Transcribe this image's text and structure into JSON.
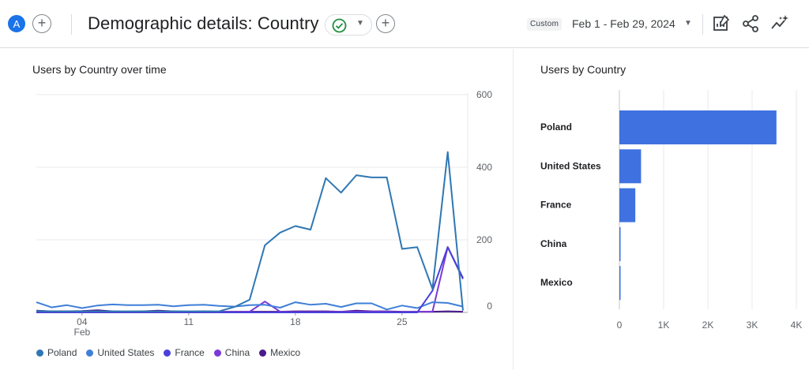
{
  "header": {
    "avatar_letter": "A",
    "title": "Demographic details: Country",
    "custom_label": "Custom",
    "date_range": "Feb 1 - Feb 29, 2024"
  },
  "left_card": {
    "title": "Users by Country over time"
  },
  "right_card": {
    "title": "Users by Country"
  },
  "colors": {
    "Poland": "#2f77b3",
    "United States": "#3f7fd8",
    "France": "#4a3fd9",
    "China": "#7b39d6",
    "Mexico": "#4a1a8a",
    "bar": "#3f72e0"
  },
  "chart_data": [
    {
      "type": "line",
      "title": "Users by Country over time",
      "x_tick_labels": [
        "04",
        "11",
        "18",
        "25"
      ],
      "x_tick_days": [
        4,
        11,
        18,
        25
      ],
      "x_month_label": "Feb",
      "y_tick_labels": [
        "600",
        "400",
        "200",
        "0"
      ],
      "y_ticks": [
        600,
        400,
        200,
        0
      ],
      "ylim": [
        0,
        600
      ],
      "x_days": [
        1,
        2,
        3,
        4,
        5,
        6,
        7,
        8,
        9,
        10,
        11,
        12,
        13,
        14,
        15,
        16,
        17,
        18,
        19,
        20,
        21,
        22,
        23,
        24,
        25,
        26,
        27,
        28,
        29
      ],
      "series": [
        {
          "name": "Poland",
          "values": [
            4,
            3,
            3,
            3,
            3,
            3,
            3,
            3,
            3,
            3,
            3,
            3,
            3,
            15,
            35,
            185,
            220,
            238,
            228,
            370,
            330,
            378,
            372,
            372,
            175,
            180,
            65,
            442,
            5
          ]
        },
        {
          "name": "United States",
          "values": [
            28,
            14,
            20,
            12,
            19,
            22,
            20,
            20,
            21,
            17,
            20,
            21,
            18,
            16,
            20,
            21,
            13,
            28,
            21,
            24,
            15,
            25,
            25,
            8,
            19,
            12,
            28,
            26,
            16
          ]
        },
        {
          "name": "France",
          "values": [
            0,
            0,
            0,
            0,
            0,
            0,
            0,
            0,
            0,
            0,
            0,
            0,
            0,
            0,
            0,
            0,
            0,
            0,
            0,
            0,
            0,
            0,
            0,
            0,
            0,
            0,
            60,
            180,
            95
          ]
        },
        {
          "name": "China",
          "values": [
            3,
            2,
            2,
            3,
            3,
            1,
            2,
            2,
            2,
            1,
            1,
            2,
            1,
            1,
            2,
            30,
            2,
            1,
            1,
            1,
            2,
            2,
            2,
            2,
            1,
            2,
            2,
            180,
            92
          ]
        },
        {
          "name": "Mexico",
          "values": [
            5,
            3,
            3,
            4,
            6,
            3,
            2,
            3,
            5,
            3,
            2,
            3,
            2,
            2,
            2,
            2,
            2,
            3,
            3,
            3,
            2,
            5,
            3,
            3,
            2,
            2,
            2,
            3,
            2
          ]
        }
      ],
      "legend": [
        "Poland",
        "United States",
        "France",
        "China",
        "Mexico"
      ],
      "grid": true,
      "legend_position": "bottom-left"
    },
    {
      "type": "bar",
      "orientation": "horizontal",
      "title": "Users by Country",
      "categories": [
        "Poland",
        "United States",
        "France",
        "China",
        "Mexico"
      ],
      "values": [
        3550,
        490,
        360,
        12,
        8
      ],
      "xlim": [
        0,
        4000
      ],
      "x_ticks": [
        0,
        1000,
        2000,
        3000,
        4000
      ],
      "x_tick_labels": [
        "0",
        "1K",
        "2K",
        "3K",
        "4K"
      ],
      "grid": true
    }
  ]
}
